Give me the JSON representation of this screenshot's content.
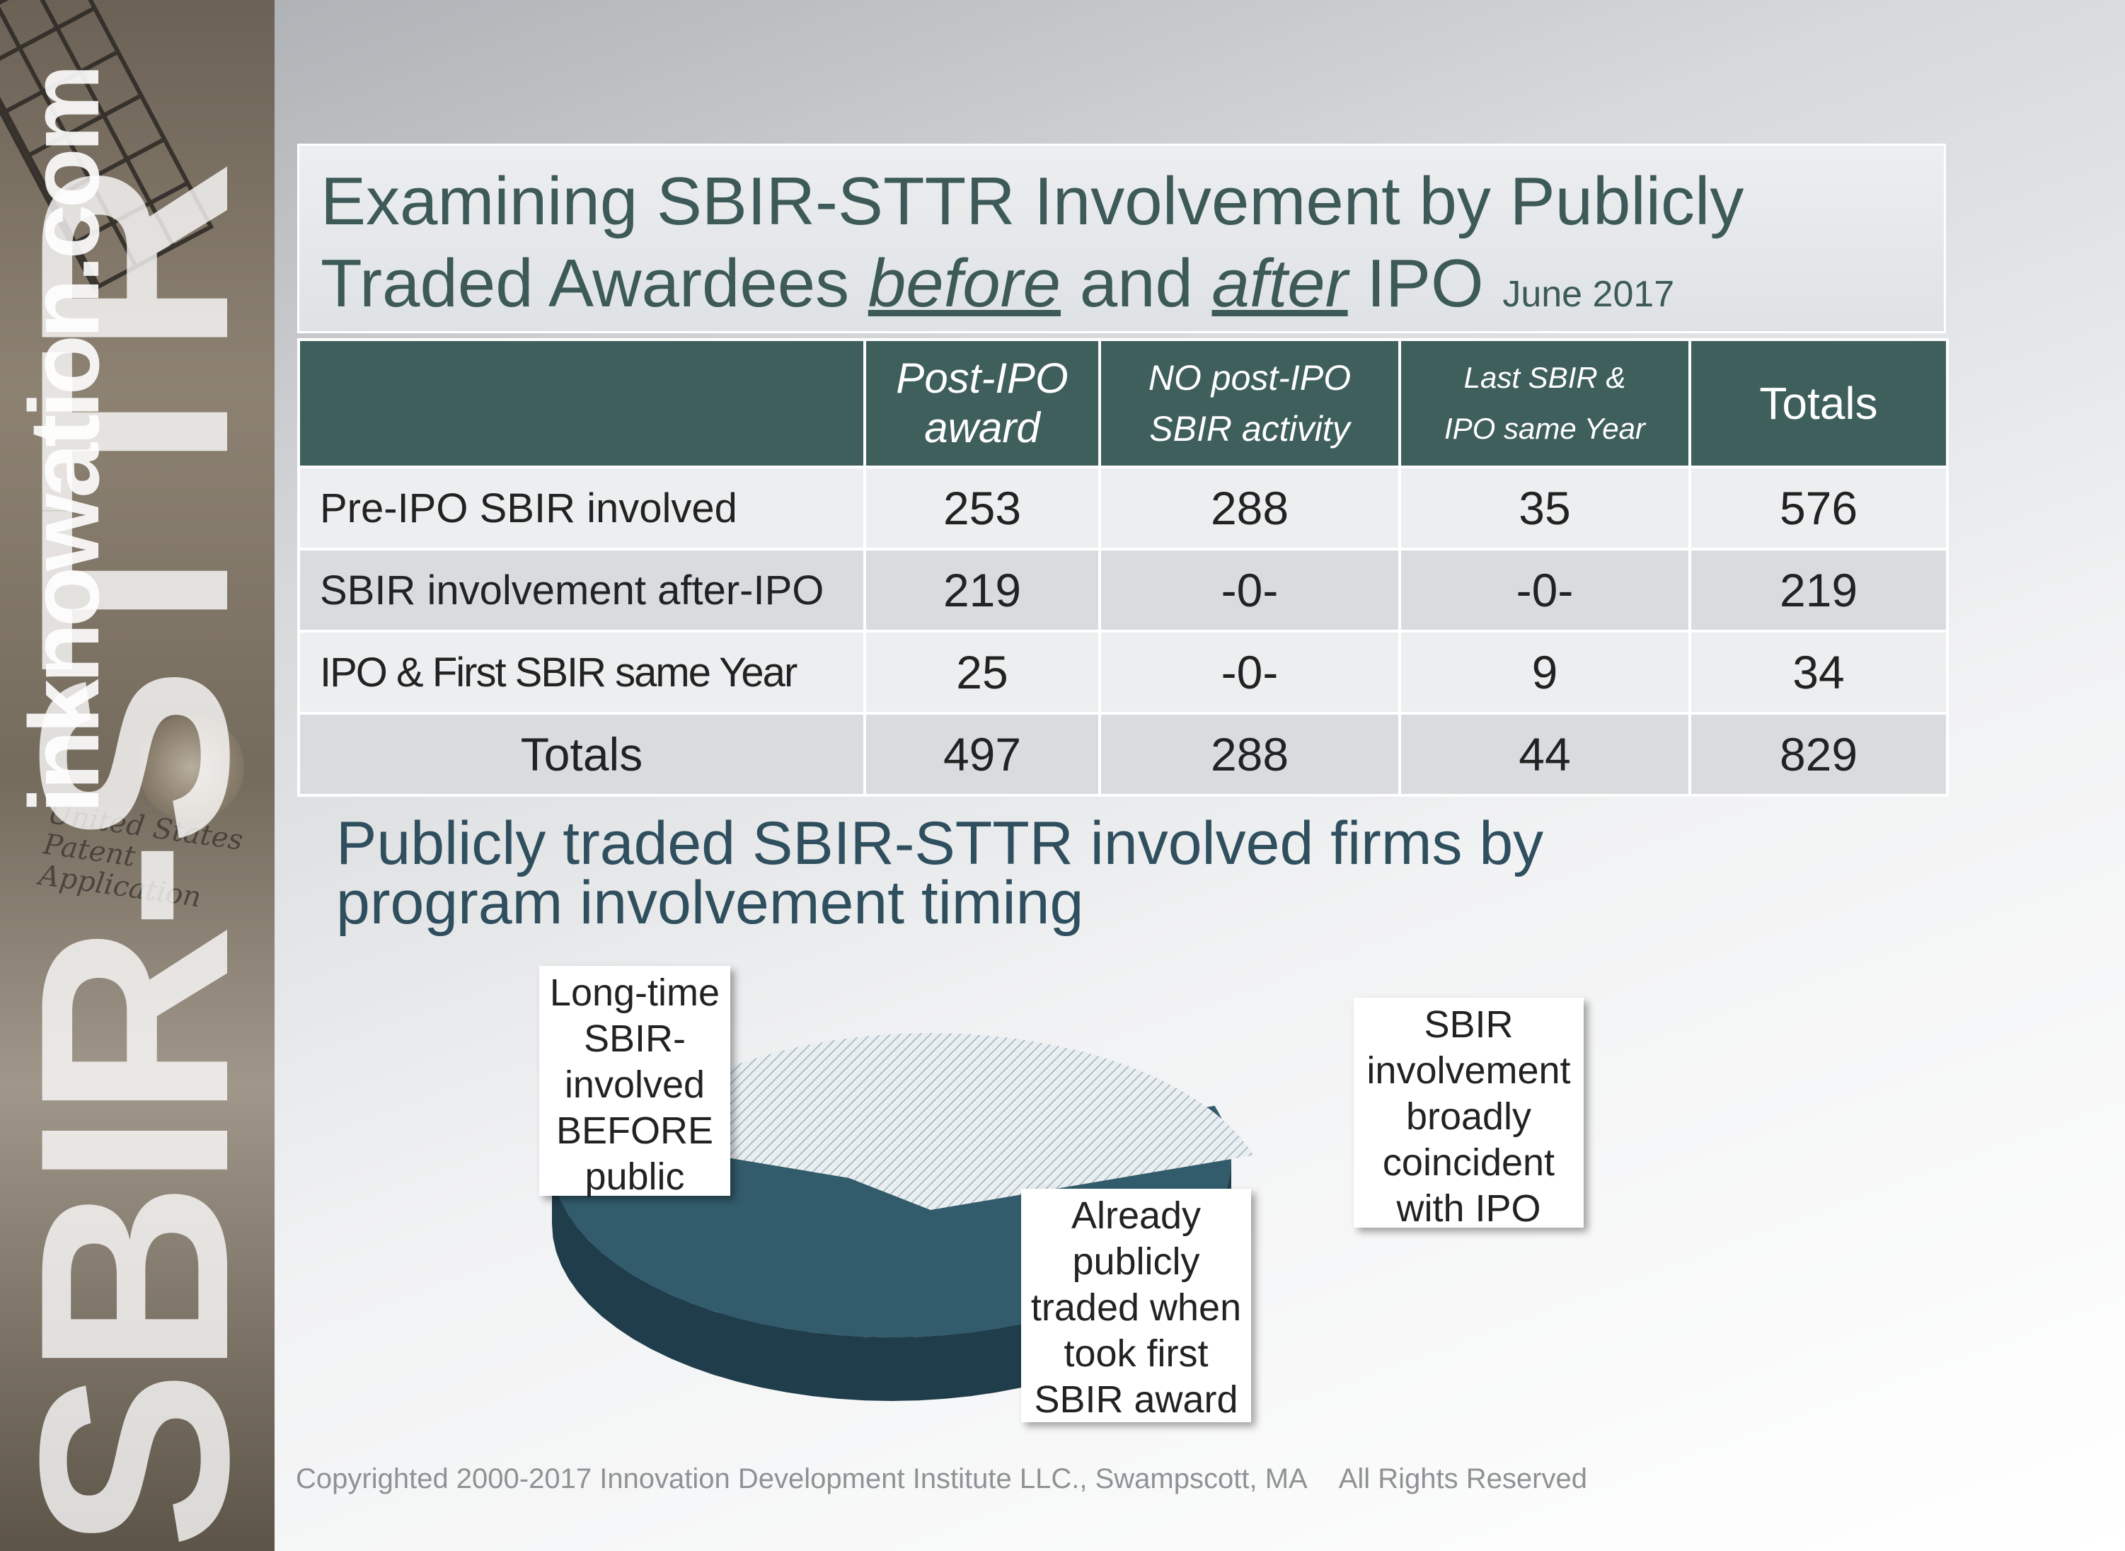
{
  "sidebar": {
    "brand_main": "SBIR-STTR",
    "brand_sub": "inknowation.com",
    "patent_line1": "United States",
    "patent_line2": "Patent Application"
  },
  "title": {
    "line1": "Examining SBIR-STTR Involvement by Publicly",
    "line2_part1": "Traded Awardees ",
    "before": "before",
    "line2_part2": " and ",
    "after": "after",
    "line2_part3": " IPO ",
    "date": "June 2017"
  },
  "table": {
    "headers": [
      {
        "line1": "",
        "line2": ""
      },
      {
        "line1": "Post-IPO",
        "line2": "award"
      },
      {
        "line1": "NO post-IPO",
        "line2": "SBIR activity"
      },
      {
        "line1": "Last SBIR &",
        "line2": "IPO same Year"
      },
      {
        "line1": "Totals",
        "line2": ""
      }
    ],
    "rows": [
      {
        "label": "Pre-IPO SBIR involved",
        "cells": [
          "253",
          "288",
          "35",
          "576"
        ]
      },
      {
        "label": "SBIR involvement after-IPO",
        "cells": [
          "219",
          "-0-",
          "-0-",
          "219"
        ]
      },
      {
        "label": "IPO & First SBIR same Year",
        "cells": [
          "25",
          "-0-",
          "9",
          "34"
        ]
      },
      {
        "label": "Totals",
        "cells": [
          "497",
          "288",
          "44",
          "829"
        ]
      }
    ]
  },
  "chart_data": {
    "type": "pie",
    "title": "Publicly traded SBIR-STTR involved firms by program involvement timing",
    "slices": [
      {
        "label": "Long-time SBIR-involved BEFORE public",
        "value": 497,
        "color": "#325b6b"
      },
      {
        "label": "SBIR involvement broadly coincident with IPO",
        "value": 44,
        "color": "#dfe6ea"
      },
      {
        "label": "Already publicly traded when took first SBIR award",
        "value": 288,
        "color": "#e7ecef"
      }
    ],
    "callouts": {
      "c1": [
        "Long-time",
        "SBIR-",
        "involved",
        "BEFORE",
        "public"
      ],
      "c2": [
        "SBIR",
        "involvement",
        "broadly",
        "coincident",
        "with IPO"
      ],
      "c3": [
        "Already",
        "publicly",
        "traded when",
        "took first",
        "SBIR award"
      ]
    }
  },
  "footer": {
    "copyright": "Copyrighted 2000-2017 Innovation Development Institute LLC., Swampscott, MA",
    "rights": "All Rights Reserved"
  }
}
